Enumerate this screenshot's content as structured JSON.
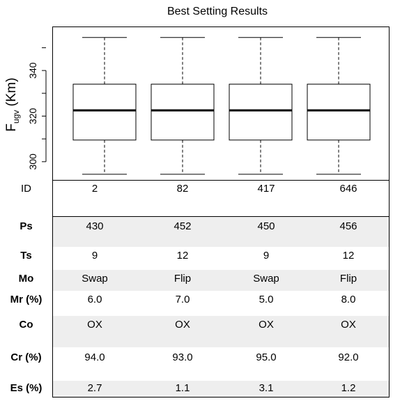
{
  "chart_data": {
    "type": "box",
    "title": "Best Setting Results",
    "ylabel_main": "F",
    "ylabel_sub": "ugv",
    "ylabel_unit": " (Km)",
    "ylim": [
      292,
      359
    ],
    "yticks": [
      300,
      320,
      340
    ],
    "categories": [
      "2",
      "82",
      "417",
      "646"
    ],
    "boxes": [
      {
        "name": "2",
        "whisker_low": 294.5,
        "q1": 309.5,
        "median": 322.5,
        "q3": 334,
        "whisker_high": 354.5
      },
      {
        "name": "82",
        "whisker_low": 294.5,
        "q1": 309.5,
        "median": 322.5,
        "q3": 334,
        "whisker_high": 354.5
      },
      {
        "name": "417",
        "whisker_low": 294.5,
        "q1": 309.5,
        "median": 322.5,
        "q3": 334,
        "whisker_high": 354.5
      },
      {
        "name": "646",
        "whisker_low": 294.5,
        "q1": 309.5,
        "median": 322.5,
        "q3": 334,
        "whisker_high": 354.5
      }
    ]
  },
  "table": {
    "id_label": "ID",
    "rows": [
      {
        "label": "Ps",
        "values": [
          "430",
          "452",
          "450",
          "456"
        ],
        "shaded": true
      },
      {
        "label": "Ts",
        "values": [
          "9",
          "12",
          "9",
          "12"
        ],
        "shaded": false
      },
      {
        "label": "Mo",
        "values": [
          "Swap",
          "Flip",
          "Swap",
          "Flip"
        ],
        "shaded": true
      },
      {
        "label": "Mr (%)",
        "values": [
          "6.0",
          "7.0",
          "5.0",
          "8.0"
        ],
        "shaded": false
      },
      {
        "label": "Co",
        "values": [
          "OX",
          "OX",
          "OX",
          "OX"
        ],
        "shaded": true
      },
      {
        "label": "Cr (%)",
        "values": [
          "94.0",
          "93.0",
          "95.0",
          "92.0"
        ],
        "shaded": false
      },
      {
        "label": "Es (%)",
        "values": [
          "2.7",
          "1.1",
          "3.1",
          "1.2"
        ],
        "shaded": true
      }
    ]
  }
}
